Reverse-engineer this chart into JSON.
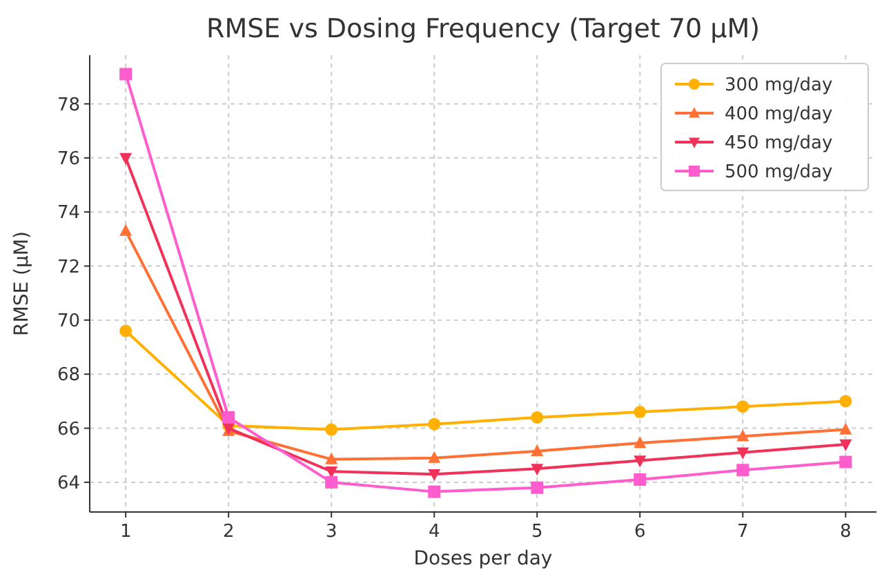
{
  "chart_data": {
    "type": "line",
    "title": "RMSE vs Dosing Frequency (Target 70 µM)",
    "xlabel": "Doses per day",
    "ylabel": "RMSE (µM)",
    "x": [
      1,
      2,
      3,
      4,
      5,
      6,
      7,
      8
    ],
    "xlim": [
      0.65,
      8.3
    ],
    "xticks": [
      1,
      2,
      3,
      4,
      5,
      6,
      7,
      8
    ],
    "ylim": [
      62.9,
      79.8
    ],
    "yticks": [
      64,
      66,
      68,
      70,
      72,
      74,
      76,
      78
    ],
    "grid": true,
    "legend": "top right",
    "line_style": "solid",
    "series": [
      {
        "name": "300 mg/day",
        "color": "#ffb000",
        "marker": "circle",
        "values": [
          69.6,
          66.1,
          65.95,
          66.15,
          66.4,
          66.6,
          66.8,
          67.0
        ]
      },
      {
        "name": "400 mg/day",
        "color": "#ff7034",
        "marker": "triangle",
        "values": [
          73.3,
          65.9,
          64.85,
          64.9,
          65.15,
          65.45,
          65.7,
          65.95
        ]
      },
      {
        "name": "450 mg/day",
        "color": "#f0325a",
        "marker": "triangle-down",
        "values": [
          76.0,
          66.0,
          64.4,
          64.3,
          64.5,
          64.8,
          65.1,
          65.4
        ]
      },
      {
        "name": "500 mg/day",
        "color": "#ff5ccd",
        "marker": "square",
        "values": [
          79.1,
          66.4,
          64.0,
          63.65,
          63.8,
          64.1,
          64.45,
          64.75
        ]
      }
    ]
  }
}
